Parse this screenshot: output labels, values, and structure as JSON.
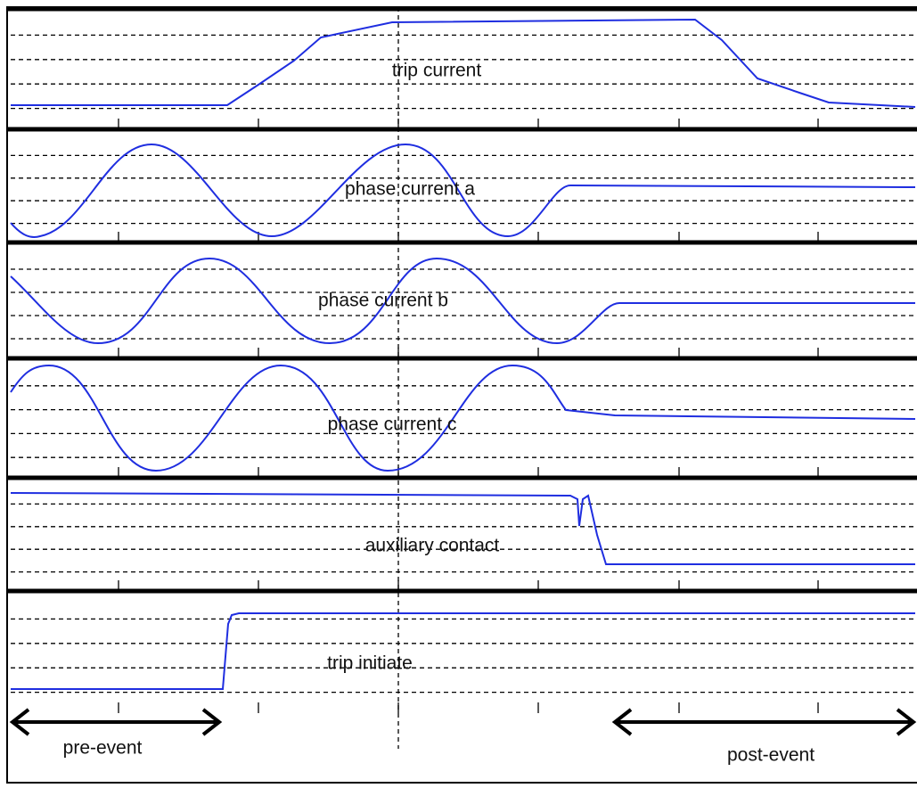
{
  "panels": [
    {
      "label": "trip current"
    },
    {
      "label": "phase current a"
    },
    {
      "label": "phase current b"
    },
    {
      "label": "phase current c"
    },
    {
      "label": "auxiliary contact"
    },
    {
      "label": "trip initiate"
    }
  ],
  "timeline": {
    "pre_event": "pre-event",
    "post_event": "post-event"
  }
}
